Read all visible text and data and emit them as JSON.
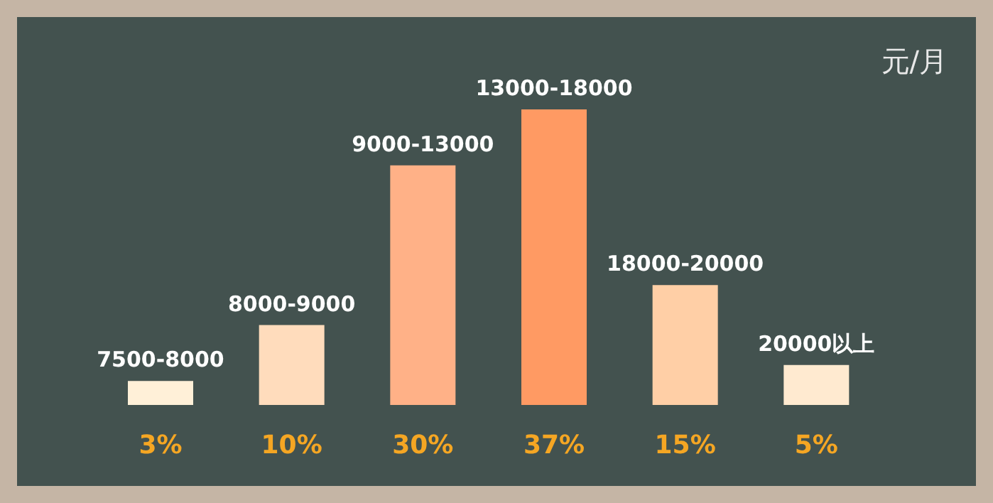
{
  "chart_data": {
    "type": "bar",
    "categories": [
      null,
      null,
      null,
      null,
      null,
      null
    ],
    "values": [
      3,
      10,
      30,
      37,
      15,
      5
    ],
    "value_labels": [
      "3%",
      "10%",
      "30%",
      "37%",
      "15%",
      "5%"
    ],
    "colors": [
      "#fff0d8",
      "#ffdcbc",
      "#ffb187",
      "#ff9a63",
      "#ffcfa6",
      "#ffead0"
    ],
    "annotations": [
      "元/月",
      "7500-8000",
      "8000-9000",
      "9000-13000",
      "13000-18000",
      "18000-20000",
      "20000以上"
    ]
  }
}
